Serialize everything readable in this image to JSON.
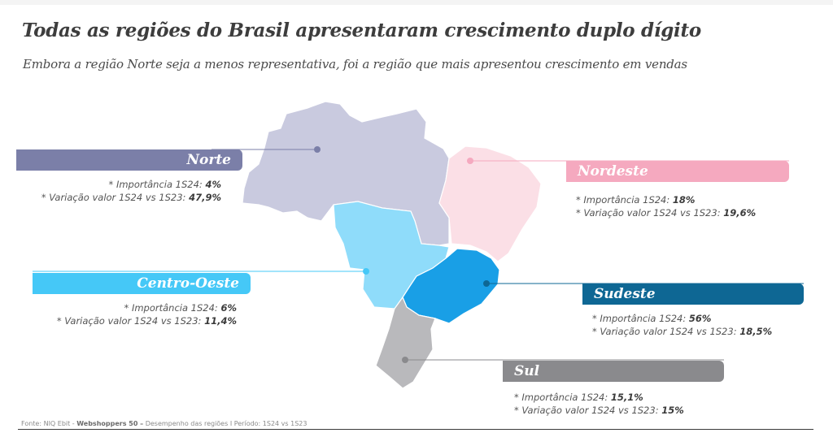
{
  "title": "Todas as regiões do Brasil apresentaram crescimento duplo dígito",
  "subtitle": "Embora a região Norte seja a menos representativa, foi a região que mais apresentou crescimento em vendas",
  "stat_labels": {
    "importance": "* Importância 1S24: ",
    "variation": "* Variação valor 1S24 vs 1S23: "
  },
  "regions": {
    "norte": {
      "name": "Norte",
      "importance": "4%",
      "variation": "47,9%",
      "color": "#7b7fa8",
      "map_color": "#c9cadf"
    },
    "nordeste": {
      "name": "Nordeste",
      "importance": "18%",
      "variation": "19,6%",
      "color": "#f5a9bf",
      "map_color": "#fbdfe6"
    },
    "centro_oeste": {
      "name": "Centro-Oeste",
      "importance": "6%",
      "variation": "11,4%",
      "color": "#45c8f7",
      "map_color": "#8fdcfa"
    },
    "sudeste": {
      "name": "Sudeste",
      "importance": "56%",
      "variation": "18,5%",
      "color": "#0e6794",
      "map_color": "#199fe6"
    },
    "sul": {
      "name": "Sul",
      "importance": "15,1%",
      "variation": "15%",
      "color": "#8a8a8d",
      "map_color": "#b9b9bc"
    }
  },
  "source": {
    "prefix": "Fonte: NIQ Ebit - ",
    "bold": "Webshoppers 50 –",
    "suffix": " Desempenho das regiões I Período: 1S24 vs 1S23"
  }
}
